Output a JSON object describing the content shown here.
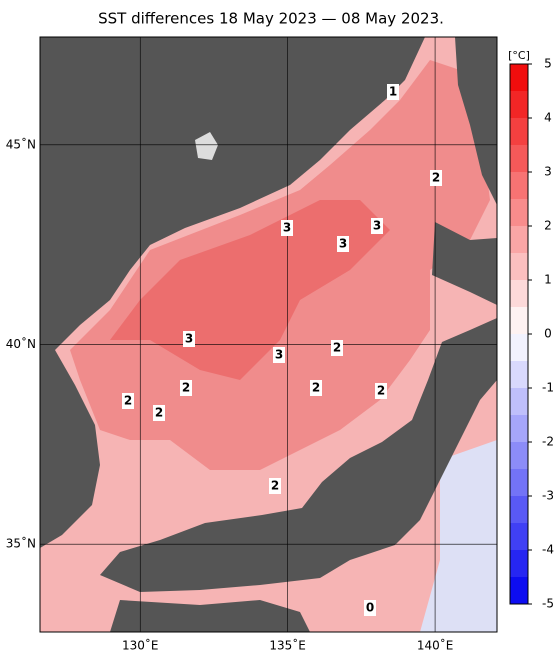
{
  "title": "SST differences 18 May 2023 — 08 May 2023.",
  "map": {
    "lonlim": [
      126.6,
      142.1
    ],
    "latlim": [
      32.8,
      47.7
    ],
    "xticks": [
      {
        "value": 130,
        "label": "130˚E"
      },
      {
        "value": 135,
        "label": "135˚E"
      },
      {
        "value": 140,
        "label": "140˚E"
      }
    ],
    "yticks": [
      {
        "value": 35,
        "label": "35˚N"
      },
      {
        "value": 40,
        "label": "40˚N"
      },
      {
        "value": 45,
        "label": "45˚N"
      }
    ],
    "contour_labels": [
      "1",
      "2",
      "3",
      "3",
      "3",
      "3",
      "3",
      "2",
      "2",
      "2",
      "2",
      "2",
      "2",
      "2",
      "0"
    ]
  },
  "colorbar": {
    "unit": "[°C]",
    "lim": [
      -5,
      5
    ],
    "ticks": [
      5,
      4,
      3,
      2,
      1,
      0,
      -1,
      -2,
      -3,
      -4,
      -5
    ]
  }
}
